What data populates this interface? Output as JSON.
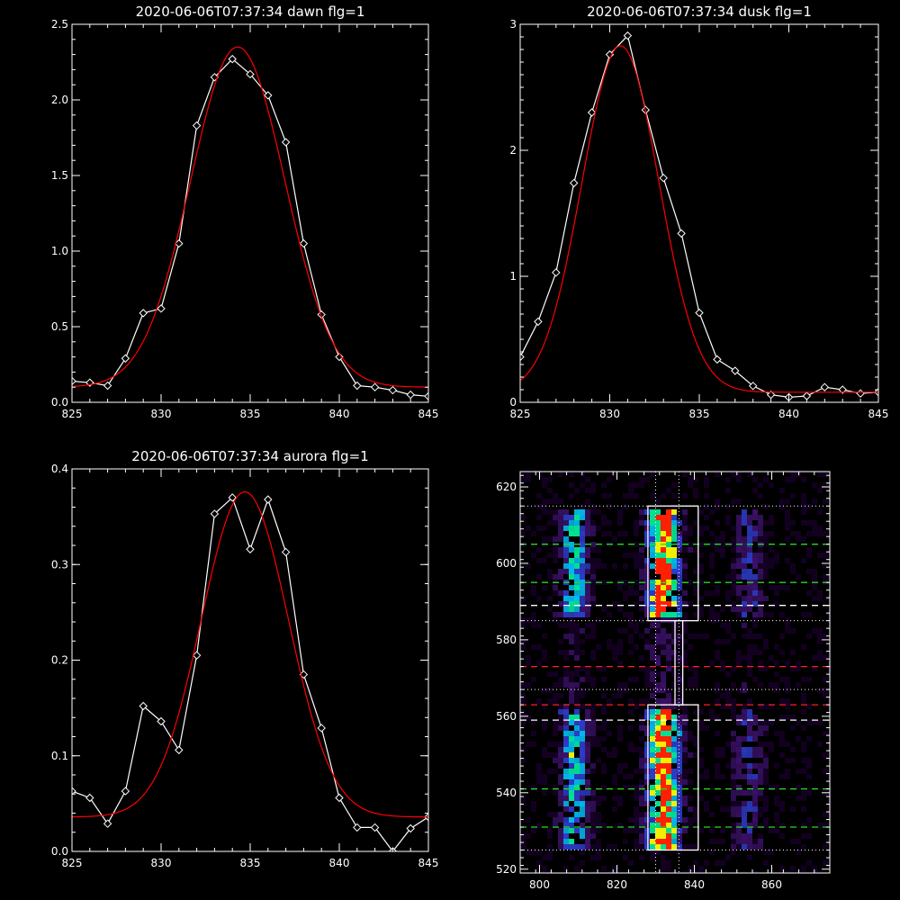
{
  "chart_data": [
    {
      "type": "line",
      "title": "2020-06-06T07:37:34 dawn flg=1",
      "xlim": [
        825,
        845
      ],
      "ylim": [
        0,
        2.5
      ],
      "xticks": [
        "825",
        "830",
        "835",
        "840",
        "845"
      ],
      "yticks": [
        "0.0",
        "0.5",
        "1.0",
        "1.5",
        "2.0",
        "2.5"
      ],
      "series": [
        {
          "color": "#ffffff",
          "marker": "diamond",
          "x": [
            825,
            826,
            827,
            828,
            829,
            830,
            831,
            832,
            833,
            834,
            835,
            836,
            837,
            838,
            839,
            840,
            841,
            842,
            843,
            844,
            845
          ],
          "y": [
            0.14,
            0.13,
            0.11,
            0.29,
            0.59,
            0.62,
            1.05,
            1.83,
            2.15,
            2.27,
            2.17,
            2.03,
            1.72,
            1.05,
            0.58,
            0.3,
            0.11,
            0.1,
            0.08,
            0.05,
            0.04
          ]
        },
        {
          "color": "#ff0000",
          "marker": "none",
          "fit": "gaussian",
          "amp": 2.25,
          "center": 834.3,
          "sigma": 2.65,
          "offset": 0.1
        }
      ]
    },
    {
      "type": "line",
      "title": "2020-06-06T07:37:34 dusk flg=1",
      "xlim": [
        825,
        845
      ],
      "ylim": [
        0,
        3
      ],
      "xticks": [
        "825",
        "830",
        "835",
        "840",
        "845"
      ],
      "yticks": [
        "0",
        "1",
        "2",
        "3"
      ],
      "series": [
        {
          "color": "#ffffff",
          "marker": "diamond",
          "x": [
            825,
            826,
            827,
            828,
            829,
            830,
            831,
            832,
            833,
            834,
            835,
            836,
            837,
            838,
            839,
            840,
            841,
            842,
            843,
            844,
            845
          ],
          "y": [
            0.36,
            0.64,
            1.03,
            1.74,
            2.3,
            2.76,
            2.91,
            2.32,
            1.78,
            1.34,
            0.71,
            0.34,
            0.25,
            0.13,
            0.06,
            0.04,
            0.05,
            0.12,
            0.1,
            0.07,
            0.08
          ]
        },
        {
          "color": "#ff0000",
          "marker": "none",
          "fit": "gaussian",
          "amp": 2.75,
          "center": 830.6,
          "sigma": 2.15,
          "offset": 0.08
        }
      ]
    },
    {
      "type": "line",
      "title": "2020-06-06T07:37:34 aurora flg=1",
      "xlim": [
        825,
        845
      ],
      "ylim": [
        0,
        0.4
      ],
      "xticks": [
        "825",
        "830",
        "835",
        "840",
        "845"
      ],
      "yticks": [
        "0.0",
        "0.1",
        "0.2",
        "0.3",
        "0.4"
      ],
      "series": [
        {
          "color": "#ffffff",
          "marker": "diamond",
          "x": [
            825,
            826,
            827,
            828,
            829,
            830,
            831,
            832,
            833,
            834,
            835,
            836,
            837,
            838,
            839,
            840,
            841,
            842,
            843,
            844,
            845
          ],
          "y": [
            0.063,
            0.056,
            0.029,
            0.063,
            0.152,
            0.136,
            0.106,
            0.205,
            0.353,
            0.37,
            0.316,
            0.368,
            0.313,
            0.185,
            0.129,
            0.056,
            0.025,
            0.025,
            0.0,
            0.024,
            0.036
          ]
        },
        {
          "color": "#ff0000",
          "marker": "none",
          "fit": "gaussian",
          "amp": 0.34,
          "center": 834.7,
          "sigma": 2.45,
          "offset": 0.036
        }
      ]
    },
    {
      "type": "heatmap",
      "title": "",
      "xlim": [
        795,
        875
      ],
      "ylim": [
        519,
        624
      ],
      "xticks": [
        "800",
        "820",
        "840",
        "860"
      ],
      "yticks": [
        "520",
        "540",
        "560",
        "580",
        "600",
        "620"
      ],
      "colormap": [
        "#2a0048",
        "#5a1aa0",
        "#3a4cff",
        "#00c8ff",
        "#00e090",
        "#f0f000",
        "#ff2000"
      ],
      "emission_columns": [
        {
          "center_x": 809,
          "intensity": 0.55
        },
        {
          "center_x": 832,
          "intensity": 1.0
        },
        {
          "center_x": 854,
          "intensity": 0.25
        }
      ],
      "boxes": [
        {
          "x0": 828,
          "x1": 841,
          "y0": 585,
          "y1": 615,
          "color": "#ffffff"
        },
        {
          "x0": 828,
          "x1": 841,
          "y0": 525,
          "y1": 563,
          "color": "#ffffff"
        },
        {
          "x0": 835,
          "x1": 837,
          "y0": 563,
          "y1": 585,
          "color": "#ffffff"
        }
      ],
      "dotted_hlines": [
        615,
        585,
        567,
        525
      ],
      "dotted_vlines": [
        830,
        836
      ],
      "white_dashed_hlines": [
        589,
        559
      ],
      "green_dashed_hlines": [
        605,
        595,
        541,
        531
      ],
      "red_dashed_hlines": [
        573,
        563
      ]
    }
  ]
}
